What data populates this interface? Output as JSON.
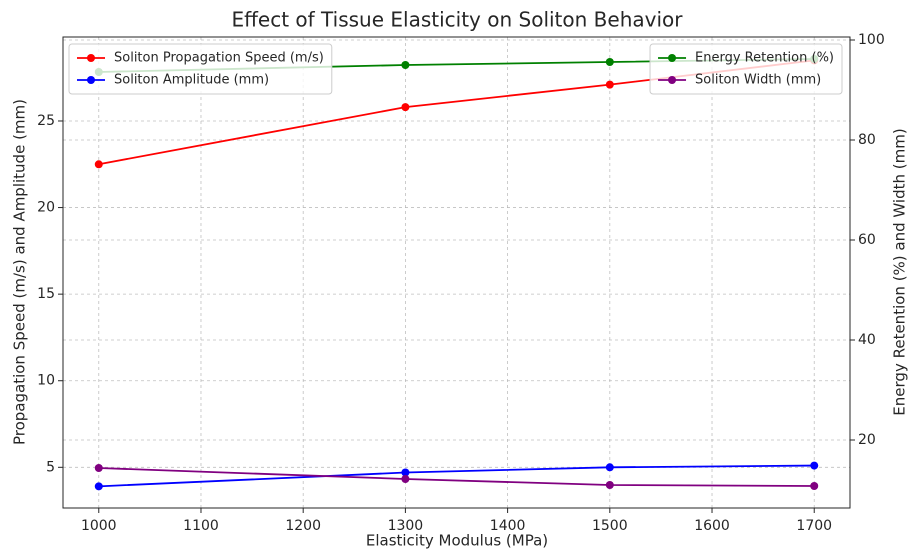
{
  "chart_data": {
    "type": "line",
    "title": "Effect of Tissue Elasticity on Soliton Behavior",
    "xlabel": "Elasticity Modulus (MPa)",
    "ylabel": "Propagation Speed (m/s) and Amplitude (mm)",
    "y2label": "Energy Retention (%) and Width (mm)",
    "x": [
      1000,
      1300,
      1500,
      1700
    ],
    "series": [
      {
        "name": "Soliton Propagation Speed (m/s)",
        "color": "#ff0000",
        "axis": "y",
        "values": [
          22.5,
          25.8,
          27.1,
          28.5
        ]
      },
      {
        "name": "Soliton Amplitude (mm)",
        "color": "#0000ff",
        "axis": "y",
        "values": [
          3.9,
          4.7,
          5.0,
          5.1
        ]
      },
      {
        "name": "Energy Retention (%)",
        "color": "#008000",
        "axis": "y2",
        "values": [
          93.6,
          95.0,
          95.6,
          96.2
        ]
      },
      {
        "name": "Soliton Width (mm)",
        "color": "#800080",
        "axis": "y2",
        "values": [
          14.4,
          12.2,
          11.0,
          10.8
        ]
      }
    ],
    "xlim": [
      965,
      1735
    ],
    "xticks": [
      1000,
      1100,
      1200,
      1300,
      1400,
      1500,
      1600,
      1700
    ],
    "ylim": [
      2.65,
      29.85
    ],
    "yticks": [
      5,
      10,
      15,
      20,
      25
    ],
    "y2lim": [
      6.4,
      100.6
    ],
    "y2ticks": [
      20,
      40,
      60,
      80,
      100
    ],
    "grid": true,
    "legend": {
      "y": "upper left",
      "y2": "upper right"
    }
  }
}
